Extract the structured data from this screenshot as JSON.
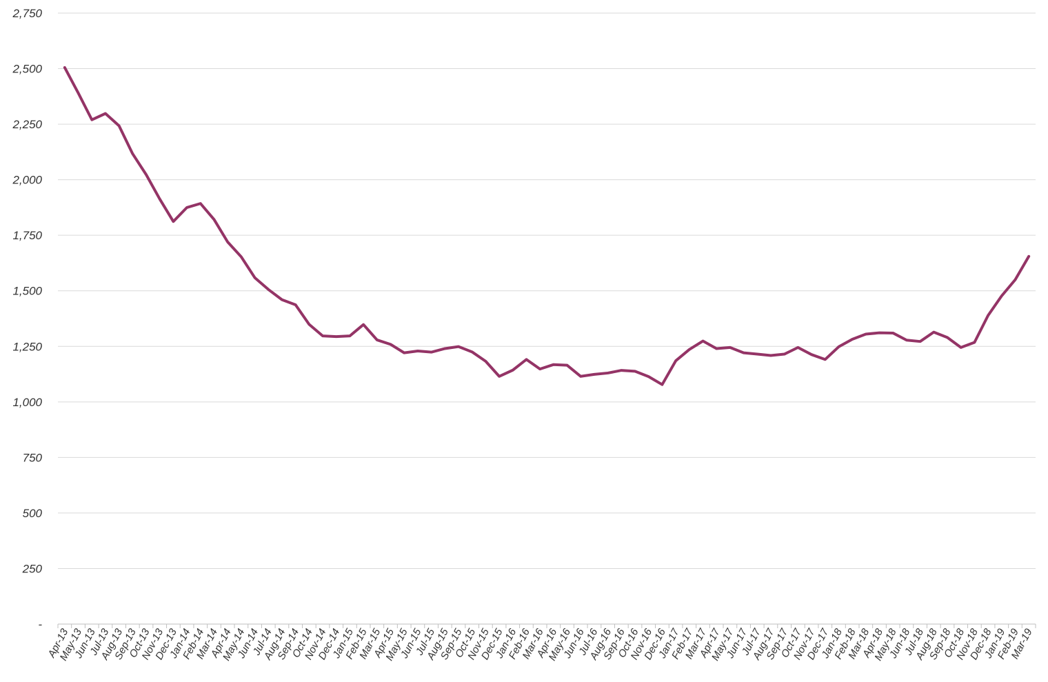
{
  "chart_data": {
    "type": "line",
    "title": "",
    "xlabel": "",
    "ylabel": "",
    "grid": true,
    "legend": "none",
    "ylim": [
      0,
      2750
    ],
    "yticks": [
      0,
      250,
      500,
      750,
      1000,
      1250,
      1500,
      1750,
      2000,
      2250,
      2500,
      2750
    ],
    "ytick_labels": [
      "-",
      "250",
      "500",
      "750",
      "1,000",
      "1,250",
      "1,500",
      "1,750",
      "2,000",
      "2,250",
      "2,500",
      "2,750"
    ],
    "line_color": "#943466",
    "categories": [
      "Apr-13",
      "May-13",
      "Jun-13",
      "Jul-13",
      "Aug-13",
      "Sep-13",
      "Oct-13",
      "Nov-13",
      "Dec-13",
      "Jan-14",
      "Feb-14",
      "Mar-14",
      "Apr-14",
      "May-14",
      "Jun-14",
      "Jul-14",
      "Aug-14",
      "Sep-14",
      "Oct-14",
      "Nov-14",
      "Dec-14",
      "Jan-15",
      "Feb-15",
      "Mar-15",
      "Apr-15",
      "May-15",
      "Jun-15",
      "Jul-15",
      "Aug-15",
      "Sep-15",
      "Oct-15",
      "Nov-15",
      "Dec-15",
      "Jan-16",
      "Feb-16",
      "Mar-16",
      "Apr-16",
      "May-16",
      "Jun-16",
      "Jul-16",
      "Aug-16",
      "Sep-16",
      "Oct-16",
      "Nov-16",
      "Dec-16",
      "Jan-17",
      "Feb-17",
      "Mar-17",
      "Apr-17",
      "May-17",
      "Jun-17",
      "Jul-17",
      "Aug-17",
      "Sep-17",
      "Oct-17",
      "Nov-17",
      "Dec-17",
      "Jan-18",
      "Feb-18",
      "Mar-18",
      "Apr-18",
      "May-18",
      "Jun-18",
      "Jul-18",
      "Aug-18",
      "Sep-18",
      "Oct-18",
      "Nov-18",
      "Dec-18",
      "Jan-19",
      "Feb-19",
      "Mar-19"
    ],
    "series": [
      {
        "values": [
          2505,
          2390,
          2270,
          2298,
          2243,
          2117,
          2023,
          1913,
          1812,
          1875,
          1893,
          1821,
          1720,
          1653,
          1559,
          1506,
          1460,
          1437,
          1349,
          1297,
          1294,
          1297,
          1348,
          1279,
          1259,
          1221,
          1229,
          1224,
          1240,
          1249,
          1225,
          1183,
          1115,
          1143,
          1191,
          1148,
          1168,
          1165,
          1115,
          1124,
          1130,
          1142,
          1138,
          1114,
          1078,
          1185,
          1236,
          1274,
          1240,
          1245,
          1221,
          1215,
          1209,
          1215,
          1245,
          1213,
          1191,
          1248,
          1282,
          1305,
          1311,
          1310,
          1278,
          1272,
          1314,
          1290,
          1245,
          1268,
          1389,
          1477,
          1550,
          1655
        ]
      }
    ]
  }
}
